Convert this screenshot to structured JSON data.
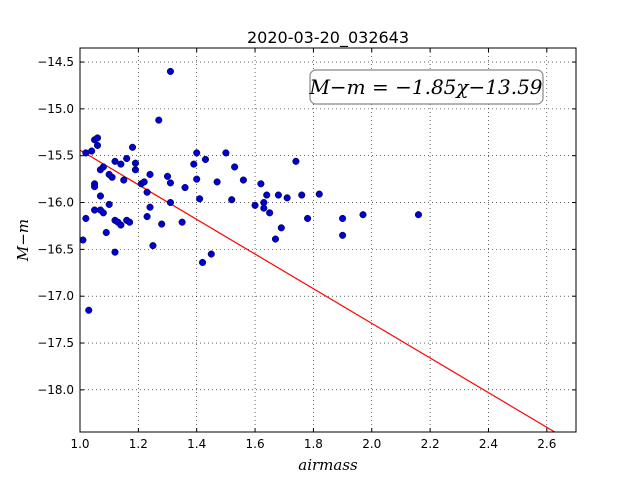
{
  "chart_data": {
    "type": "scatter",
    "title": "2020-03-20_032643",
    "xlabel": "airmass",
    "ylabel": "M−m",
    "xlim": [
      1.0,
      2.7
    ],
    "ylim": [
      -18.45,
      -14.35
    ],
    "xticks": [
      1.0,
      1.2,
      1.4,
      1.6,
      1.8,
      2.0,
      2.2,
      2.4,
      2.6
    ],
    "xtick_labels": [
      "1.0",
      "1.2",
      "1.4",
      "1.6",
      "1.8",
      "2.0",
      "2.2",
      "2.4",
      "2.6"
    ],
    "yticks": [
      -14.5,
      -15.0,
      -15.5,
      -16.0,
      -16.5,
      -17.0,
      -17.5,
      -18.0
    ],
    "ytick_labels": [
      "−14.5",
      "−15.0",
      "−15.5",
      "−16.0",
      "−16.5",
      "−17.0",
      "−17.5",
      "−18.0"
    ],
    "grid": true,
    "annotation": "M−m = −1.85χ−13.59",
    "fit": {
      "slope": -1.85,
      "intercept": -13.59,
      "color": "#ff0000"
    },
    "point_color": "#0000cc",
    "points": [
      [
        1.01,
        -16.4
      ],
      [
        1.02,
        -16.17
      ],
      [
        1.03,
        -17.15
      ],
      [
        1.02,
        -15.47
      ],
      [
        1.04,
        -15.45
      ],
      [
        1.05,
        -15.33
      ],
      [
        1.06,
        -15.31
      ],
      [
        1.06,
        -15.39
      ],
      [
        1.05,
        -15.8
      ],
      [
        1.05,
        -15.83
      ],
      [
        1.05,
        -16.08
      ],
      [
        1.07,
        -15.65
      ],
      [
        1.08,
        -15.62
      ],
      [
        1.07,
        -15.93
      ],
      [
        1.07,
        -16.08
      ],
      [
        1.08,
        -16.11
      ],
      [
        1.09,
        -16.32
      ],
      [
        1.1,
        -16.02
      ],
      [
        1.1,
        -15.7
      ],
      [
        1.11,
        -15.73
      ],
      [
        1.12,
        -15.56
      ],
      [
        1.12,
        -16.19
      ],
      [
        1.12,
        -16.53
      ],
      [
        1.13,
        -16.21
      ],
      [
        1.14,
        -16.24
      ],
      [
        1.14,
        -15.59
      ],
      [
        1.15,
        -15.76
      ],
      [
        1.16,
        -15.53
      ],
      [
        1.16,
        -16.19
      ],
      [
        1.17,
        -16.21
      ],
      [
        1.18,
        -15.41
      ],
      [
        1.19,
        -15.58
      ],
      [
        1.19,
        -15.65
      ],
      [
        1.21,
        -15.8
      ],
      [
        1.22,
        -15.78
      ],
      [
        1.23,
        -15.89
      ],
      [
        1.23,
        -16.15
      ],
      [
        1.24,
        -15.7
      ],
      [
        1.24,
        -16.05
      ],
      [
        1.25,
        -16.46
      ],
      [
        1.27,
        -15.12
      ],
      [
        1.28,
        -16.23
      ],
      [
        1.3,
        -15.72
      ],
      [
        1.31,
        -15.79
      ],
      [
        1.31,
        -16.0
      ],
      [
        1.31,
        -14.6
      ],
      [
        1.35,
        -16.21
      ],
      [
        1.36,
        -15.84
      ],
      [
        1.39,
        -15.59
      ],
      [
        1.4,
        -15.47
      ],
      [
        1.4,
        -15.75
      ],
      [
        1.41,
        -15.96
      ],
      [
        1.42,
        -16.64
      ],
      [
        1.43,
        -15.54
      ],
      [
        1.45,
        -16.55
      ],
      [
        1.47,
        -15.78
      ],
      [
        1.5,
        -15.47
      ],
      [
        1.52,
        -15.97
      ],
      [
        1.53,
        -15.62
      ],
      [
        1.56,
        -15.76
      ],
      [
        1.6,
        -16.03
      ],
      [
        1.62,
        -15.8
      ],
      [
        1.63,
        -16.0
      ],
      [
        1.63,
        -16.06
      ],
      [
        1.64,
        -15.92
      ],
      [
        1.65,
        -16.11
      ],
      [
        1.67,
        -16.39
      ],
      [
        1.68,
        -15.92
      ],
      [
        1.69,
        -16.27
      ],
      [
        1.71,
        -15.95
      ],
      [
        1.74,
        -15.56
      ],
      [
        1.76,
        -15.92
      ],
      [
        1.78,
        -16.17
      ],
      [
        1.82,
        -15.91
      ],
      [
        1.9,
        -16.17
      ],
      [
        1.9,
        -16.35
      ],
      [
        1.97,
        -16.13
      ],
      [
        2.16,
        -16.13
      ]
    ]
  }
}
